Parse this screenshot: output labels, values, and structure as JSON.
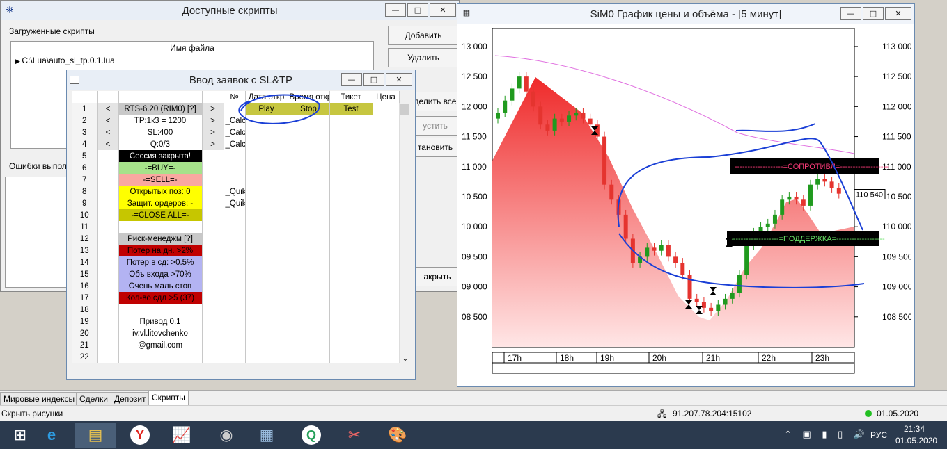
{
  "scripts_window": {
    "title": "Доступные скрипты",
    "group_label": "Загруженные скрипты",
    "col_header": "Имя файла",
    "file": "C:\\Lua\\auto_sl_tp.0.1.lua",
    "errors_label": "Ошибки выпол",
    "buttons": {
      "add": "Добавить",
      "remove": "Удалить",
      "all": "делить все",
      "start": "устить",
      "stop": "тановить",
      "close": "акрыть"
    }
  },
  "sltp_window": {
    "title": "Ввод заявок с SL&TP",
    "headers": [
      "№",
      "Дата откр",
      "Время откр",
      "Тикет",
      "Цена"
    ],
    "rows": [
      {
        "n": "1",
        "l": "<",
        "c": "RTS-6.20 (RIM0) [?]",
        "r": ">",
        "x": "",
        "b1": "Play",
        "b2": "Stop",
        "b3": "Test",
        "style": "gray"
      },
      {
        "n": "2",
        "l": "<",
        "c": "TP:1к3 = 1200",
        "r": ">",
        "x": "_Calc",
        "style": "white"
      },
      {
        "n": "3",
        "l": "<",
        "c": "SL:400",
        "r": ">",
        "x": "_Calc",
        "style": "white"
      },
      {
        "n": "4",
        "l": "<",
        "c": "Q:0/3",
        "r": ">",
        "x": "_Calc",
        "style": "white"
      },
      {
        "n": "5",
        "c": "Сессия закрыта!",
        "x": "",
        "style": "black"
      },
      {
        "n": "6",
        "c": "-=BUY=-",
        "x": "",
        "style": "green"
      },
      {
        "n": "7",
        "c": "-=SELL=-",
        "x": "",
        "style": "pink"
      },
      {
        "n": "8",
        "c": "Открытых поз: 0",
        "x": "_Quik",
        "style": "yellow"
      },
      {
        "n": "9",
        "c": "Защит. ордеров: -",
        "x": "_Quik",
        "style": "yellow"
      },
      {
        "n": "10",
        "c": "-=CLOSE ALL=-",
        "x": "",
        "style": "olive"
      },
      {
        "n": "11",
        "c": "",
        "x": "",
        "style": "white"
      },
      {
        "n": "12",
        "c": "Риск-менеджм [?]",
        "x": "",
        "style": "gray"
      },
      {
        "n": "13",
        "c": "Потер на дн. >2%",
        "x": "",
        "style": "red"
      },
      {
        "n": "14",
        "c": "Потер в сд: >0.5%",
        "x": "",
        "style": "lav"
      },
      {
        "n": "15",
        "c": "Объ входа >70%",
        "x": "",
        "style": "lav"
      },
      {
        "n": "16",
        "c": "Очень маль стоп",
        "x": "",
        "style": "lav"
      },
      {
        "n": "17",
        "c": "Кол-во сдл >5 (37)",
        "x": "",
        "style": "red"
      },
      {
        "n": "18",
        "c": "",
        "x": "",
        "style": "white"
      },
      {
        "n": "19",
        "c": "Привод 0.1",
        "x": "",
        "style": "white"
      },
      {
        "n": "20",
        "c": "iv.vl.litovchenko",
        "x": "",
        "style": "white"
      },
      {
        "n": "21",
        "c": "@gmail.com",
        "x": "",
        "style": "white"
      },
      {
        "n": "22",
        "c": "",
        "x": "",
        "style": "white"
      }
    ]
  },
  "chart_window": {
    "title": "SiM0 График цены и объёма - [5 минут]",
    "last_price": "110 540",
    "resist": "-------------------=СОПРОТИВЛ=-------------------",
    "support": "-------------------=ПОДДЕРЖКА=-------------------"
  },
  "chart_data": {
    "type": "candlestick",
    "y_left_ticks": [
      "13 000",
      "12 500",
      "12 000",
      "11 500",
      "11 000",
      "10 500",
      "10 000",
      "09 500",
      "09 000",
      "08 500"
    ],
    "y_right_ticks": [
      "113 000",
      "112 500",
      "112 000",
      "111 500",
      "111 000",
      "110 500",
      "110 000",
      "109 500",
      "109 000",
      "108 500"
    ],
    "x_ticks": [
      "17h",
      "18h",
      "19h",
      "20h",
      "21h",
      "22h",
      "23h"
    ],
    "ylim": [
      108000,
      113300
    ],
    "closes": [
      111900,
      112100,
      112300,
      112500,
      112250,
      112000,
      111700,
      111600,
      111800,
      111750,
      111850,
      111900,
      111800,
      111700,
      111500,
      110700,
      110450,
      110200,
      109800,
      109400,
      109500,
      109650,
      109600,
      109700,
      109500,
      109400,
      109200,
      108800,
      108750,
      108650,
      108600,
      108700,
      108800,
      108900,
      109200,
      109700,
      109900,
      110000,
      110050,
      110200,
      110450,
      110500,
      110450,
      110350,
      110700,
      110800,
      110750,
      110650,
      110550
    ]
  },
  "tabs": [
    "Мировые индексы",
    "Сделки",
    "Депозит",
    "Скрипты"
  ],
  "status": {
    "left": "Скрыть рисунки",
    "server": "91.207.78.204:15102",
    "date": "01.05.2020"
  },
  "taskbar": {
    "lang": "РУС",
    "time": "21:34",
    "date": "01.05.2020"
  },
  "colors": {
    "accent": "#1a3fd6",
    "sell": "#e5342f",
    "buy": "#209a1e"
  }
}
